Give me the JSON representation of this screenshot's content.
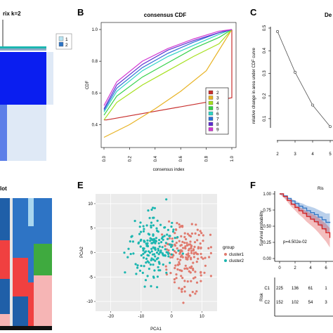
{
  "panel_letters": [
    "B",
    "C",
    "E",
    "F"
  ],
  "panel_a": {
    "title_fragment": "rix k=2",
    "legend": [
      "1",
      "2"
    ]
  },
  "panel_d": {
    "title_fragment": "lot"
  },
  "colors": {
    "cluster1": "#e07a6e",
    "cluster2": "#1bb6b0",
    "heat_dark": "#0a1ef0",
    "heat_light": "#dfe9f6",
    "km_red": "#d62728",
    "km_blue": "#3878c5"
  },
  "chart_data": [
    {
      "panel": "B",
      "type": "line",
      "title": "consensus CDF",
      "xlabel": "consensus index",
      "ylabel": "CDF",
      "xlim": [
        0,
        1
      ],
      "ylim": [
        0.3,
        1.0
      ],
      "xticks": [
        "0.0",
        "0.2",
        "0.4",
        "0.6",
        "0.8",
        "1.0"
      ],
      "yticks": [
        "1.0",
        "0.8",
        "0.6",
        "0.4"
      ],
      "legend_position": "bottom-right",
      "series": [
        {
          "name": "2",
          "color": "#c8302e",
          "x": [
            0,
            0.02,
            1.0,
            1.0
          ],
          "y": [
            0.43,
            0.43,
            0.57,
            1.0
          ]
        },
        {
          "name": "3",
          "color": "#e8b324",
          "x": [
            0,
            0.2,
            0.4,
            0.6,
            0.8,
            1.0
          ],
          "y": [
            0.32,
            0.4,
            0.5,
            0.61,
            0.74,
            1.0
          ]
        },
        {
          "name": "4",
          "color": "#a6e01e",
          "x": [
            0,
            0.1,
            0.3,
            0.5,
            0.7,
            0.9,
            1.0
          ],
          "y": [
            0.43,
            0.54,
            0.65,
            0.74,
            0.83,
            0.91,
            1.0
          ]
        },
        {
          "name": "5",
          "color": "#35d14b",
          "x": [
            0,
            0.1,
            0.3,
            0.5,
            0.7,
            0.9,
            1.0
          ],
          "y": [
            0.46,
            0.58,
            0.7,
            0.79,
            0.88,
            0.95,
            1.0
          ]
        },
        {
          "name": "6",
          "color": "#2fd4c4",
          "x": [
            0,
            0.1,
            0.3,
            0.5,
            0.7,
            0.9,
            1.0
          ],
          "y": [
            0.48,
            0.61,
            0.74,
            0.83,
            0.9,
            0.97,
            1.0
          ]
        },
        {
          "name": "7",
          "color": "#2b6fd6",
          "x": [
            0,
            0.1,
            0.3,
            0.5,
            0.7,
            0.9,
            1.0
          ],
          "y": [
            0.49,
            0.63,
            0.76,
            0.85,
            0.92,
            0.98,
            1.0
          ]
        },
        {
          "name": "8",
          "color": "#5e2fd0",
          "x": [
            0,
            0.1,
            0.3,
            0.5,
            0.7,
            0.9,
            1.0
          ],
          "y": [
            0.5,
            0.65,
            0.78,
            0.87,
            0.93,
            0.98,
            1.0
          ]
        },
        {
          "name": "9",
          "color": "#d338d1",
          "x": [
            0,
            0.1,
            0.3,
            0.5,
            0.7,
            0.9,
            1.0
          ],
          "y": [
            0.52,
            0.67,
            0.8,
            0.88,
            0.94,
            0.99,
            1.0
          ]
        }
      ]
    },
    {
      "panel": "C",
      "type": "line",
      "title": "De",
      "xlabel": "",
      "ylabel": "relative change in area under CDF curve",
      "xticks": [
        "2",
        "3",
        "4",
        "5"
      ],
      "yticks": [
        "0.5",
        "0.4",
        "0.3",
        "0.2",
        "0.1"
      ],
      "ylim": [
        0.05,
        0.5
      ],
      "x": [
        2,
        3,
        4,
        5
      ],
      "y": [
        0.485,
        0.305,
        0.16,
        0.065
      ]
    },
    {
      "panel": "E",
      "type": "scatter",
      "xlabel": "PCA1",
      "ylabel": "PCA2",
      "xlim": [
        -25,
        15
      ],
      "ylim": [
        -12,
        12
      ],
      "xticks": [
        "-20",
        "-10",
        "0",
        "10"
      ],
      "yticks": [
        "10",
        "5",
        "0",
        "-5",
        "-10"
      ],
      "legend_title": "group",
      "series": [
        {
          "name": "cluster1",
          "color": "#e07a6e",
          "n_points": 180
        },
        {
          "name": "cluster2",
          "color": "#1bb6b0",
          "n_points": 180
        }
      ]
    },
    {
      "panel": "F",
      "type": "line",
      "ylabel": "Survival probability",
      "xticks": [
        "0",
        "2",
        "4",
        "6"
      ],
      "yticks": [
        "1.00",
        "0.75",
        "0.50",
        "0.25",
        "0.00"
      ],
      "annotation": "p=4.502e-02",
      "legend_title_fragment": "Ris",
      "risk_table": {
        "row_label": "Risk",
        "groups": [
          "C1",
          "C2"
        ],
        "values": [
          [
            "225",
            "136",
            "61",
            "1"
          ],
          [
            "152",
            "102",
            "54",
            "3"
          ]
        ]
      }
    }
  ]
}
